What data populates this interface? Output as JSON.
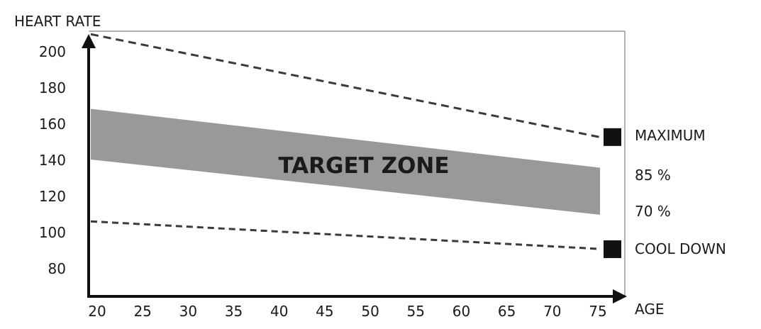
{
  "chart_data": {
    "type": "area",
    "ylabel": "HEART RATE",
    "xlabel": "AGE",
    "xlim": [
      20,
      75
    ],
    "ylim": [
      80,
      200
    ],
    "x_ticks": [
      "20",
      "25",
      "30",
      "35",
      "40",
      "45",
      "50",
      "55",
      "60",
      "65",
      "70",
      "75"
    ],
    "y_ticks": [
      "200",
      "180",
      "160",
      "140",
      "120",
      "100",
      "80"
    ],
    "zone_label": "TARGET ZONE",
    "series": [
      {
        "name": "MAXIMUM",
        "style": "dashed",
        "x": [
          20,
          75
        ],
        "values": [
          209,
          153
        ]
      },
      {
        "name": "85 %",
        "style": "band-top",
        "x": [
          20,
          75
        ],
        "values": [
          168,
          136
        ]
      },
      {
        "name": "70 %",
        "style": "band-bottom",
        "x": [
          20,
          75
        ],
        "values": [
          140,
          110
        ]
      },
      {
        "name": "COOL DOWN",
        "style": "dashed",
        "x": [
          20,
          75
        ],
        "values": [
          106,
          91
        ]
      }
    ],
    "colors": {
      "band": "#999999",
      "axis": "#111111",
      "dash": "#3a3a3a",
      "marker": "#111111"
    }
  }
}
